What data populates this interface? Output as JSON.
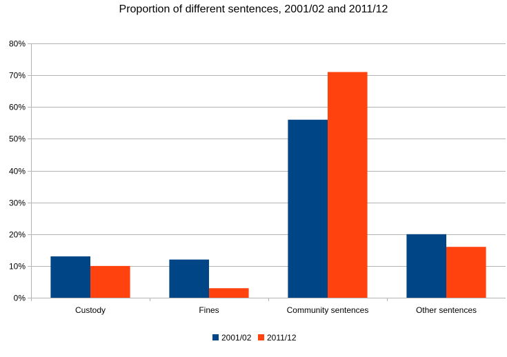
{
  "chart_data": {
    "type": "bar",
    "title": "Proportion of different sentences, 2001/02 and 2011/12",
    "xlabel": "",
    "ylabel": "",
    "categories": [
      "Custody",
      "Fines",
      "Community sentences",
      "Other sentences"
    ],
    "series": [
      {
        "name": "2001/02",
        "values": [
          13,
          12,
          56,
          20
        ],
        "color": "#004586"
      },
      {
        "name": "2011/12",
        "values": [
          10,
          3,
          71,
          16
        ],
        "color": "#ff420e"
      }
    ],
    "ylim": [
      0,
      80
    ],
    "yticks": [
      "0%",
      "10%",
      "20%",
      "30%",
      "40%",
      "50%",
      "60%",
      "70%",
      "80%"
    ],
    "grid": true,
    "legend": "bottom"
  }
}
